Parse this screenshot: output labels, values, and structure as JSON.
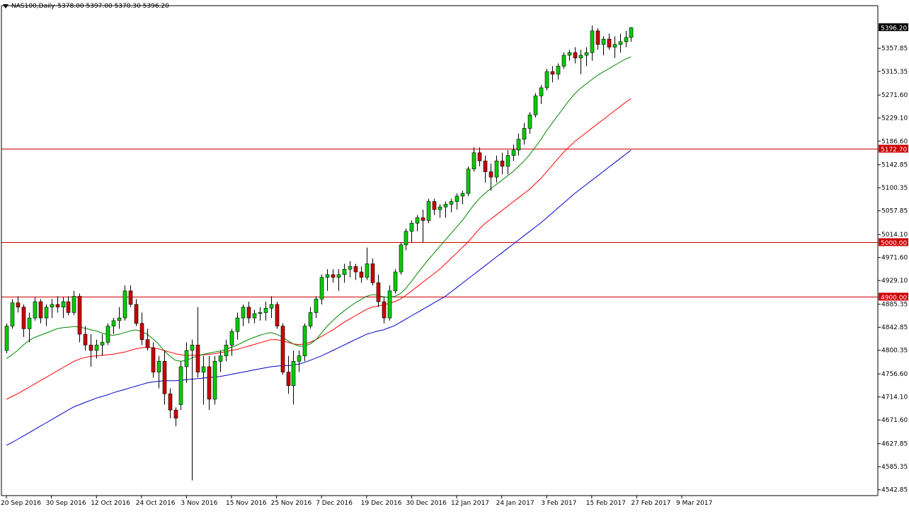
{
  "header": {
    "symbol": "NAS100,Daily",
    "ohlc": "5378.00 5397.00 5370.30 5396.20"
  },
  "colors": {
    "background": "#ffffff",
    "bull": "#00cc00",
    "bear": "#cc0000",
    "ma_fast": "#008800",
    "ma_mid": "#ff0000",
    "ma_slow": "#0000cc",
    "hline": "#cc0000",
    "axis": "#000000"
  },
  "chart_data": {
    "type": "candlestick",
    "title": "",
    "ylim": [
      4530,
      5410
    ],
    "grid": false,
    "price_labels": [
      "5357.85",
      "5315.35",
      "5271.60",
      "5229.10",
      "5186.60",
      "5142.85",
      "5100.35",
      "5057.85",
      "5014.10",
      "4971.60",
      "4929.10",
      "4885.35",
      "4842.85",
      "4800.35",
      "4756.60",
      "4714.10",
      "4671.60",
      "4627.85",
      "4585.35",
      "4542.85"
    ],
    "current_price_label": "5396.20",
    "x_labels": [
      "20 Sep 2016",
      "30 Sep 2016",
      "12 Oct 2016",
      "24 Oct 2016",
      "3 Nov 2016",
      "15 Nov 2016",
      "25 Nov 2016",
      "7 Dec 2016",
      "19 Dec 2016",
      "30 Dec 2016",
      "12 Jan 2017",
      "24 Jan 2017",
      "3 Feb 2017",
      "15 Feb 2017",
      "27 Feb 2017",
      "9 Mar 2017"
    ],
    "x_label_index": [
      0,
      8,
      16,
      24,
      32,
      40,
      48,
      56,
      64,
      72,
      80,
      88,
      96,
      104,
      112,
      120
    ],
    "horizontal_lines": [
      {
        "value": 5172.7,
        "label": "5172.70"
      },
      {
        "value": 5000.0,
        "label": "5000.00"
      },
      {
        "value": 4900.0,
        "label": "4900.00"
      }
    ],
    "candles": [
      [
        4800,
        4850,
        4795,
        4845
      ],
      [
        4845,
        4895,
        4840,
        4888
      ],
      [
        4888,
        4900,
        4870,
        4880
      ],
      [
        4880,
        4885,
        4825,
        4840
      ],
      [
        4840,
        4870,
        4815,
        4860
      ],
      [
        4860,
        4898,
        4855,
        4890
      ],
      [
        4890,
        4895,
        4850,
        4860
      ],
      [
        4860,
        4885,
        4845,
        4880
      ],
      [
        4880,
        4895,
        4860,
        4885
      ],
      [
        4885,
        4900,
        4870,
        4880
      ],
      [
        4880,
        4898,
        4860,
        4890
      ],
      [
        4890,
        4900,
        4865,
        4870
      ],
      [
        4870,
        4910,
        4865,
        4900
      ],
      [
        4900,
        4905,
        4815,
        4830
      ],
      [
        4830,
        4845,
        4800,
        4810
      ],
      [
        4810,
        4830,
        4770,
        4800
      ],
      [
        4800,
        4820,
        4785,
        4810
      ],
      [
        4810,
        4830,
        4790,
        4815
      ],
      [
        4815,
        4850,
        4810,
        4845
      ],
      [
        4845,
        4860,
        4830,
        4855
      ],
      [
        4855,
        4880,
        4840,
        4860
      ],
      [
        4860,
        4920,
        4855,
        4910
      ],
      [
        4910,
        4920,
        4880,
        4885
      ],
      [
        4885,
        4895,
        4845,
        4850
      ],
      [
        4850,
        4870,
        4810,
        4820
      ],
      [
        4820,
        4840,
        4800,
        4805
      ],
      [
        4805,
        4815,
        4750,
        4760
      ],
      [
        4760,
        4790,
        4730,
        4780
      ],
      [
        4780,
        4800,
        4700,
        4720
      ],
      [
        4720,
        4730,
        4675,
        4690
      ],
      [
        4690,
        4695,
        4660,
        4675
      ],
      [
        4700,
        4780,
        4690,
        4770
      ],
      [
        4770,
        4815,
        4740,
        4800
      ],
      [
        4800,
        4820,
        4560,
        4810
      ],
      [
        4810,
        4880,
        4750,
        4760
      ],
      [
        4760,
        4790,
        4700,
        4770
      ],
      [
        4770,
        4790,
        4690,
        4710
      ],
      [
        4710,
        4790,
        4700,
        4780
      ],
      [
        4780,
        4800,
        4760,
        4790
      ],
      [
        4790,
        4820,
        4780,
        4810
      ],
      [
        4810,
        4840,
        4790,
        4835
      ],
      [
        4835,
        4870,
        4820,
        4860
      ],
      [
        4860,
        4885,
        4845,
        4880
      ],
      [
        4880,
        4890,
        4850,
        4860
      ],
      [
        4860,
        4875,
        4850,
        4868
      ],
      [
        4868,
        4880,
        4855,
        4870
      ],
      [
        4870,
        4890,
        4855,
        4878
      ],
      [
        4878,
        4900,
        4860,
        4885
      ],
      [
        4885,
        4890,
        4840,
        4845
      ],
      [
        4845,
        4850,
        4755,
        4760
      ],
      [
        4760,
        4790,
        4720,
        4735
      ],
      [
        4735,
        4800,
        4700,
        4780
      ],
      [
        4780,
        4800,
        4760,
        4790
      ],
      [
        4790,
        4850,
        4780,
        4845
      ],
      [
        4845,
        4880,
        4840,
        4870
      ],
      [
        4870,
        4900,
        4860,
        4895
      ],
      [
        4895,
        4940,
        4885,
        4935
      ],
      [
        4935,
        4950,
        4910,
        4940
      ],
      [
        4940,
        4950,
        4925,
        4935
      ],
      [
        4935,
        4950,
        4910,
        4940
      ],
      [
        4940,
        4960,
        4925,
        4950
      ],
      [
        4950,
        4965,
        4935,
        4955
      ],
      [
        4955,
        4960,
        4930,
        4945
      ],
      [
        4945,
        4955,
        4925,
        4935
      ],
      [
        4935,
        4990,
        4930,
        4960
      ],
      [
        4960,
        4970,
        4920,
        4925
      ],
      [
        4925,
        4940,
        4880,
        4890
      ],
      [
        4890,
        4900,
        4850,
        4860
      ],
      [
        4860,
        4920,
        4855,
        4910
      ],
      [
        4910,
        4950,
        4905,
        4945
      ],
      [
        4945,
        5000,
        4940,
        4995
      ],
      [
        4995,
        5025,
        4985,
        5020
      ],
      [
        5020,
        5040,
        5000,
        5035
      ],
      [
        5035,
        5050,
        5020,
        5045
      ],
      [
        5045,
        5060,
        5000,
        5040
      ],
      [
        5040,
        5080,
        5035,
        5075
      ],
      [
        5075,
        5080,
        5050,
        5060
      ],
      [
        5060,
        5070,
        5045,
        5065
      ],
      [
        5065,
        5075,
        5045,
        5070
      ],
      [
        5070,
        5080,
        5055,
        5075
      ],
      [
        5075,
        5090,
        5060,
        5085
      ],
      [
        5085,
        5095,
        5070,
        5090
      ],
      [
        5090,
        5140,
        5085,
        5135
      ],
      [
        5135,
        5175,
        5130,
        5165
      ],
      [
        5165,
        5175,
        5140,
        5150
      ],
      [
        5150,
        5160,
        5110,
        5130
      ],
      [
        5130,
        5145,
        5095,
        5120
      ],
      [
        5120,
        5160,
        5110,
        5150
      ],
      [
        5150,
        5165,
        5125,
        5140
      ],
      [
        5140,
        5170,
        5125,
        5160
      ],
      [
        5160,
        5180,
        5150,
        5170
      ],
      [
        5170,
        5200,
        5160,
        5190
      ],
      [
        5190,
        5220,
        5180,
        5210
      ],
      [
        5210,
        5240,
        5200,
        5235
      ],
      [
        5235,
        5275,
        5230,
        5270
      ],
      [
        5270,
        5290,
        5255,
        5285
      ],
      [
        5285,
        5320,
        5280,
        5315
      ],
      [
        5315,
        5325,
        5295,
        5310
      ],
      [
        5310,
        5330,
        5300,
        5325
      ],
      [
        5325,
        5350,
        5320,
        5345
      ],
      [
        5345,
        5355,
        5335,
        5350
      ],
      [
        5350,
        5360,
        5330,
        5340
      ],
      [
        5340,
        5355,
        5310,
        5345
      ],
      [
        5345,
        5360,
        5325,
        5350
      ],
      [
        5350,
        5400,
        5335,
        5390
      ],
      [
        5390,
        5395,
        5355,
        5365
      ],
      [
        5365,
        5380,
        5345,
        5375
      ],
      [
        5375,
        5385,
        5355,
        5360
      ],
      [
        5360,
        5380,
        5340,
        5365
      ],
      [
        5365,
        5385,
        5350,
        5370
      ],
      [
        5370,
        5390,
        5360,
        5378
      ],
      [
        5378,
        5397,
        5370,
        5396
      ]
    ],
    "ma_fast": [
      4785,
      4792,
      4800,
      4810,
      4818,
      4824,
      4828,
      4832,
      4836,
      4840,
      4842,
      4843,
      4844,
      4843,
      4841,
      4838,
      4836,
      4832,
      4829,
      4828,
      4830,
      4833,
      4836,
      4838,
      4835,
      4830,
      4822,
      4812,
      4800,
      4790,
      4782,
      4780,
      4782,
      4786,
      4790,
      4793,
      4795,
      4797,
      4799,
      4802,
      4806,
      4810,
      4815,
      4820,
      4824,
      4828,
      4831,
      4833,
      4830,
      4825,
      4818,
      4812,
      4808,
      4808,
      4812,
      4820,
      4832,
      4845,
      4855,
      4865,
      4873,
      4881,
      4888,
      4894,
      4900,
      4903,
      4902,
      4899,
      4898,
      4900,
      4905,
      4915,
      4928,
      4942,
      4955,
      4968,
      4980,
      4992,
      5004,
      5016,
      5028,
      5040,
      5054,
      5068,
      5080,
      5090,
      5098,
      5106,
      5114,
      5122,
      5130,
      5140,
      5150,
      5162,
      5176,
      5190,
      5206,
      5220,
      5234,
      5248,
      5262,
      5274,
      5284,
      5292,
      5300,
      5308,
      5314,
      5320,
      5326,
      5332,
      5338,
      5342
    ],
    "ma_mid": [
      4710,
      4715,
      4720,
      4726,
      4732,
      4738,
      4744,
      4750,
      4756,
      4762,
      4768,
      4774,
      4780,
      4784,
      4787,
      4789,
      4790,
      4791,
      4792,
      4793,
      4795,
      4797,
      4800,
      4803,
      4805,
      4806,
      4805,
      4803,
      4800,
      4797,
      4794,
      4792,
      4791,
      4791,
      4791,
      4792,
      4793,
      4794,
      4796,
      4798,
      4800,
      4802,
      4805,
      4808,
      4811,
      4814,
      4817,
      4820,
      4820,
      4818,
      4815,
      4812,
      4811,
      4812,
      4815,
      4820,
      4826,
      4832,
      4838,
      4845,
      4852,
      4858,
      4864,
      4870,
      4876,
      4880,
      4882,
      4884,
      4887,
      4890,
      4895,
      4902,
      4910,
      4918,
      4926,
      4934,
      4942,
      4950,
      4960,
      4970,
      4980,
      4990,
      5000,
      5012,
      5024,
      5034,
      5042,
      5050,
      5058,
      5066,
      5074,
      5082,
      5090,
      5098,
      5108,
      5118,
      5130,
      5142,
      5154,
      5166,
      5176,
      5186,
      5194,
      5202,
      5210,
      5218,
      5226,
      5234,
      5242,
      5250,
      5258,
      5265
    ],
    "ma_slow": [
      4625,
      4630,
      4636,
      4642,
      4648,
      4654,
      4660,
      4666,
      4672,
      4678,
      4684,
      4690,
      4696,
      4700,
      4704,
      4708,
      4712,
      4715,
      4718,
      4722,
      4725,
      4728,
      4731,
      4734,
      4737,
      4740,
      4742,
      4743,
      4744,
      4744,
      4744,
      4745,
      4746,
      4747,
      4748,
      4749,
      4750,
      4751,
      4752,
      4754,
      4756,
      4758,
      4760,
      4762,
      4764,
      4766,
      4768,
      4770,
      4771,
      4772,
      4772,
      4773,
      4775,
      4778,
      4782,
      4786,
      4790,
      4795,
      4800,
      4805,
      4810,
      4815,
      4820,
      4825,
      4830,
      4833,
      4836,
      4838,
      4842,
      4846,
      4852,
      4858,
      4864,
      4870,
      4876,
      4882,
      4888,
      4894,
      4900,
      4908,
      4916,
      4924,
      4932,
      4940,
      4948,
      4956,
      4964,
      4972,
      4980,
      4988,
      4996,
      5004,
      5012,
      5020,
      5028,
      5036,
      5045,
      5054,
      5063,
      5072,
      5081,
      5090,
      5098,
      5106,
      5114,
      5122,
      5130,
      5138,
      5146,
      5154,
      5162,
      5170
    ]
  }
}
